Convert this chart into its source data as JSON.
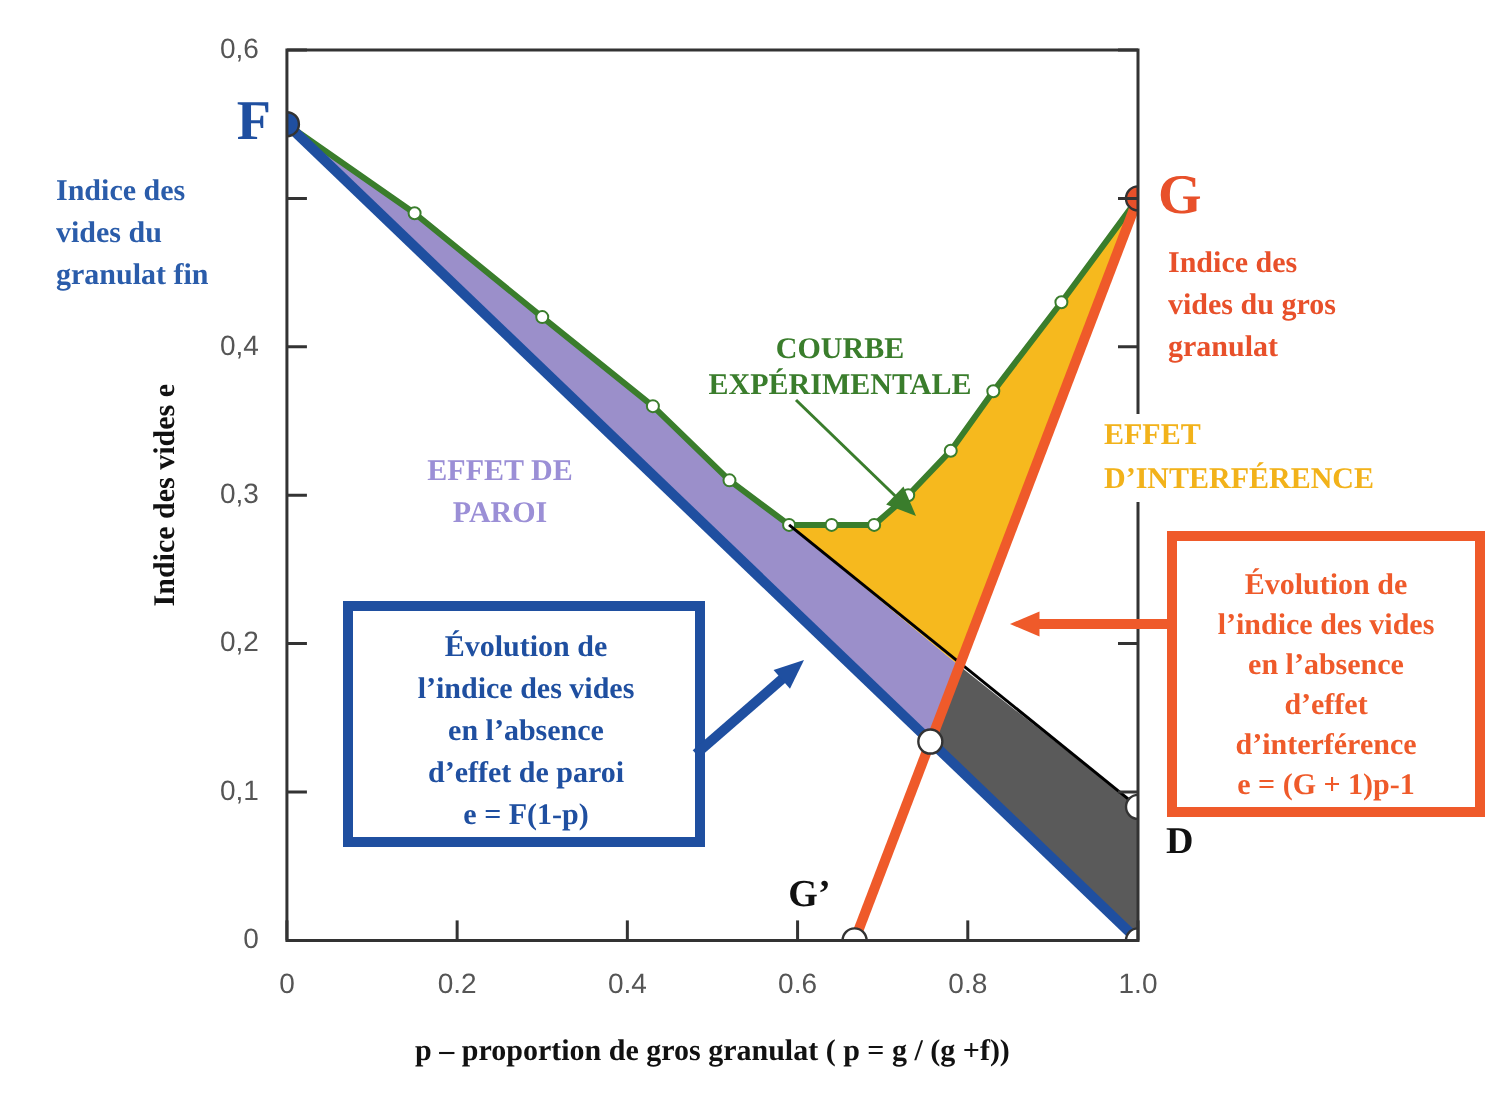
{
  "chart_data": {
    "type": "line",
    "xlabel": "p – proportion de gros granulat ( p = g / (g +f))",
    "ylabel": "Indice des vides e",
    "xlim": [
      0,
      1
    ],
    "ylim": [
      0,
      0.6
    ],
    "xticks": [
      0,
      0.2,
      0.4,
      0.6,
      0.8,
      {
        "value": 1,
        "label": "1.0"
      }
    ],
    "yticks": [
      0,
      {
        "value": 0.1,
        "label": "0,1"
      },
      {
        "value": 0.2,
        "label": "0,2"
      },
      {
        "value": 0.3,
        "label": "0,3"
      },
      {
        "value": 0.4,
        "label": "0,4"
      },
      {
        "value": 0.5,
        "label": null
      },
      {
        "value": 0.6,
        "label": "0,6"
      }
    ],
    "series": [
      {
        "type": "area",
        "name": "EFFET DE\nPAROI",
        "color": "#9b8fca",
        "x": [
          0,
          0.15,
          0.3,
          0.43,
          0.52,
          0.59,
          0.79,
          0.756,
          0
        ],
        "values": [
          0.55,
          0.49,
          0.42,
          0.36,
          0.31,
          0.28,
          0.185,
          0.134,
          0.55
        ]
      },
      {
        "type": "area",
        "name": "EFFET\nD’INTERFÉRENCE",
        "color": "#f6b91e",
        "x": [
          0.59,
          0.64,
          0.69,
          0.73,
          0.78,
          0.83,
          0.91,
          1,
          0.79,
          0.59
        ],
        "values": [
          0.28,
          0.28,
          0.28,
          0.3,
          0.33,
          0.37,
          0.43,
          0.5,
          0.185,
          0.28
        ]
      },
      {
        "type": "area",
        "color": "#5a5a5a",
        "x": [
          0.756,
          0.79,
          1,
          1,
          0.756
        ],
        "values": [
          0.134,
          0.185,
          0.09,
          0,
          0.134
        ]
      },
      {
        "name": "Évolution de\nl’indice des vides\nen l’absence\nd’effet de paroi\ne = F(1-p)",
        "color": "#1f4fa0",
        "x": [
          0,
          1
        ],
        "values": [
          0.55,
          0
        ]
      },
      {
        "name": "Évolution de\nl’indice des vides\nen l’absence\nd’effet\nd’interférence\ne = (G + 1)p-1",
        "color": "#ef5a2a",
        "x": [
          0.667,
          1
        ],
        "values": [
          0,
          0.5
        ]
      },
      {
        "color": "#000000",
        "x": [
          0.59,
          1
        ],
        "values": [
          0.28,
          0.09
        ]
      },
      {
        "name": "COURBE\nEXPÉRIMENTALE",
        "color": "#3a7d2c",
        "marker": "circle",
        "x": [
          0,
          0.15,
          0.3,
          0.43,
          0.52,
          0.59,
          0.64,
          0.69,
          0.73,
          0.78,
          0.83,
          0.91,
          1
        ],
        "values": [
          0.55,
          0.49,
          0.42,
          0.36,
          0.31,
          0.28,
          0.28,
          0.28,
          0.3,
          0.33,
          0.37,
          0.43,
          0.5
        ]
      },
      {
        "type": "scatter",
        "color": "#ffffff",
        "marker": "circle",
        "x": [
          0.667,
          0.756,
          1,
          1
        ],
        "values": [
          0,
          0.134,
          0.09,
          0
        ]
      },
      {
        "type": "scatter",
        "colors": [
          "#1f4fa0",
          "#e8502a"
        ],
        "marker": "circle",
        "x": [
          0,
          1
        ],
        "values": [
          0.55,
          0.5
        ]
      }
    ],
    "annotations": [
      {
        "text": "F",
        "x": 0,
        "y": 0.55
      },
      "Indice des\nvides du\ngranulat fin",
      {
        "text": "G",
        "x": 1,
        "y": 0.5
      },
      "Indice des\nvides du gros\ngranulat",
      {
        "text": "G’",
        "x": 0.667,
        "y": 0
      },
      {
        "text": "D",
        "x": 1,
        "y": 0.09
      }
    ]
  }
}
